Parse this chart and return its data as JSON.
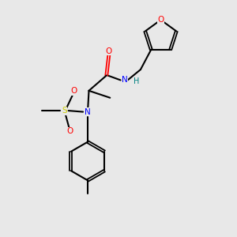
{
  "background_color": "#e8e8e8",
  "atom_colors": {
    "C": "#000000",
    "N": "#0000ff",
    "O": "#ff0000",
    "S": "#cccc00",
    "H": "#008080"
  },
  "bond_color": "#000000",
  "figsize": [
    3.0,
    3.0
  ],
  "dpi": 100,
  "xlim": [
    0,
    10
  ],
  "ylim": [
    0,
    10
  ]
}
